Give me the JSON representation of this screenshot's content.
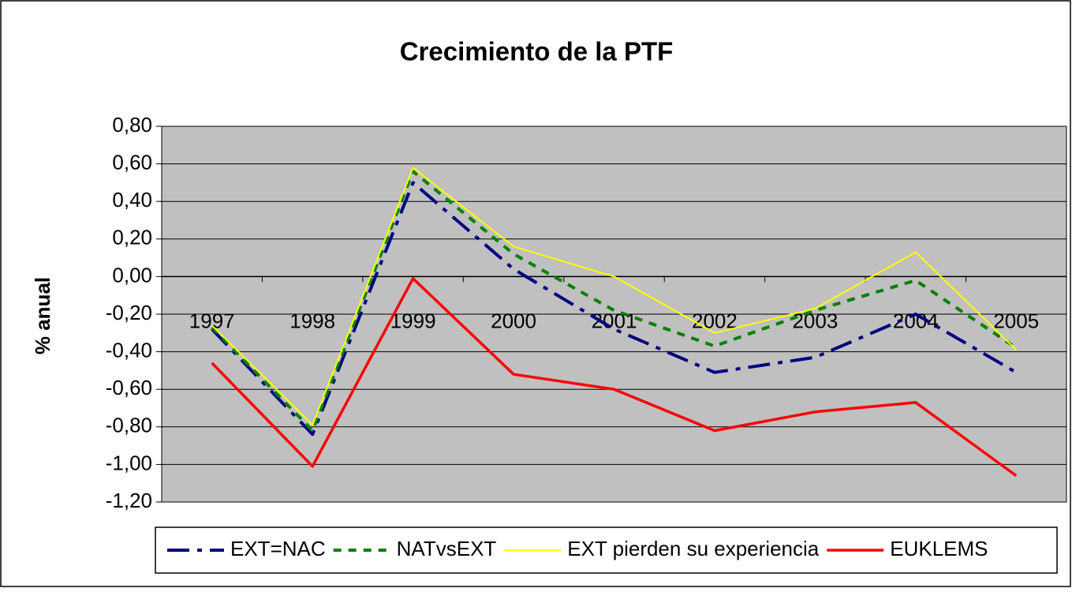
{
  "chart_data": {
    "type": "line",
    "title": "Crecimiento de la PTF",
    "y_label": "% anual",
    "categories": [
      "1997",
      "1998",
      "1999",
      "2000",
      "2001",
      "2002",
      "2003",
      "2004",
      "2005"
    ],
    "series": [
      {
        "name": "EXT=NAC",
        "color": "#000080",
        "line_style": "dashed",
        "values": [
          -0.28,
          -0.84,
          0.5,
          0.04,
          -0.28,
          -0.51,
          -0.43,
          -0.2,
          -0.51
        ]
      },
      {
        "name": "NATvsEXT",
        "color": "#008000",
        "line_style": "dotted",
        "values": [
          -0.27,
          -0.82,
          0.56,
          0.12,
          -0.18,
          -0.37,
          -0.18,
          -0.02,
          -0.38
        ]
      },
      {
        "name": "EXT pierden su experiencia",
        "color": "#ffff00",
        "line_style": "solid",
        "values": [
          -0.26,
          -0.79,
          0.58,
          0.16,
          0.0,
          -0.3,
          -0.17,
          0.13,
          -0.39
        ]
      },
      {
        "name": "EUKLEMS",
        "color": "#ff0000",
        "line_style": "solid",
        "values": [
          -0.46,
          -1.01,
          -0.01,
          -0.52,
          -0.6,
          -0.82,
          -0.72,
          -0.67,
          -1.06
        ]
      }
    ],
    "ylim": [
      -1.2,
      0.8
    ],
    "yticks": [
      {
        "value": -1.2,
        "label": "-1,20"
      },
      {
        "value": -1.0,
        "label": "-1,00"
      },
      {
        "value": -0.8,
        "label": "-0,80"
      },
      {
        "value": -0.6,
        "label": "-0,60"
      },
      {
        "value": -0.4,
        "label": "-0,40"
      },
      {
        "value": -0.2,
        "label": "-0,20"
      },
      {
        "value": 0,
        "label": "0,00"
      },
      {
        "value": 0.2,
        "label": "0,20"
      },
      {
        "value": 0.4,
        "label": "0,40"
      },
      {
        "value": 0.6,
        "label": "0,60"
      },
      {
        "value": 0.8,
        "label": "0,80"
      }
    ],
    "grid": true,
    "plot_background": "#c0c0c0",
    "legend": "bottom"
  }
}
